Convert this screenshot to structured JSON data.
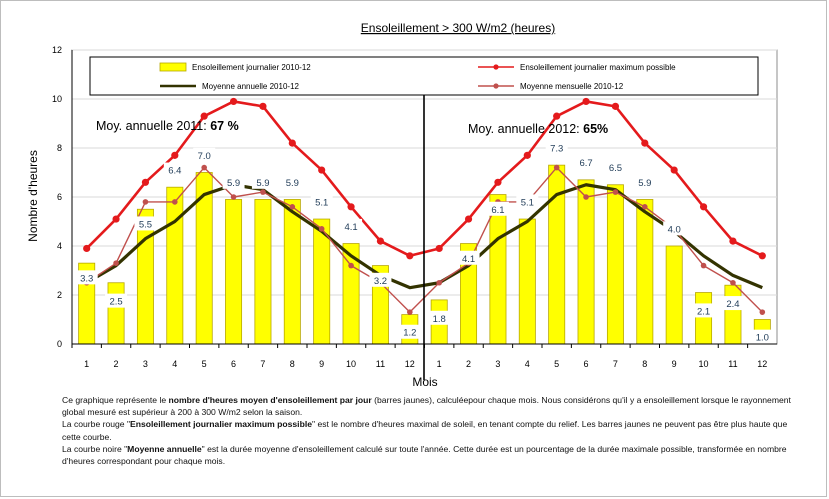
{
  "chart_data": {
    "type": "bar",
    "title": "Ensoleillement  > 300 W/m2 (heures)",
    "ylabel": "Nombre d'heures",
    "xlabel": "Mois",
    "ylim": [
      0,
      12
    ],
    "yticks": [
      "0",
      "2",
      "4",
      "6",
      "8",
      "10",
      "12"
    ],
    "grid": true,
    "legend_position": "top",
    "years": [
      "2011",
      "2012"
    ],
    "categories": [
      "1",
      "2",
      "3",
      "4",
      "5",
      "6",
      "7",
      "8",
      "9",
      "10",
      "11",
      "12",
      "1",
      "2",
      "3",
      "4",
      "5",
      "6",
      "7",
      "8",
      "9",
      "10",
      "11",
      "12"
    ],
    "bar_labels": [
      "3.3",
      "2.5",
      "5.5",
      "6.4",
      "7.0",
      "5.9",
      "5.9",
      "5.9",
      "5.1",
      "4.1",
      "3.2",
      "1.2",
      "1.8",
      "4.1",
      "6.1",
      "5.1",
      "7.3",
      "6.7",
      "6.5",
      "5.9",
      "4.0",
      "2.1",
      "2.4",
      "1.0"
    ],
    "series": [
      {
        "name": "Ensoleillement journalier 2010-12",
        "kind": "bar",
        "color": "#ffff00",
        "values": [
          3.3,
          2.5,
          5.5,
          6.4,
          7.0,
          5.9,
          5.9,
          5.9,
          5.1,
          4.1,
          3.2,
          1.2,
          1.8,
          4.1,
          6.1,
          5.1,
          7.3,
          6.7,
          6.5,
          5.9,
          4.0,
          2.1,
          2.4,
          1.0
        ]
      },
      {
        "name": "Ensoleillement journalier maximum possible",
        "kind": "line",
        "color": "#e41a1c",
        "values": [
          3.9,
          5.1,
          6.6,
          7.7,
          9.3,
          9.9,
          9.7,
          8.2,
          7.1,
          5.6,
          4.2,
          3.6,
          3.9,
          5.1,
          6.6,
          7.7,
          9.3,
          9.9,
          9.7,
          8.2,
          7.1,
          5.6,
          4.2,
          3.6
        ]
      },
      {
        "name": "Moyenne annuelle  2010-12",
        "kind": "line",
        "color": "#333300",
        "values": [
          2.5,
          3.2,
          4.3,
          5.0,
          6.1,
          6.5,
          6.3,
          5.4,
          4.6,
          3.6,
          2.8,
          2.3,
          2.5,
          3.2,
          4.3,
          5.0,
          6.1,
          6.5,
          6.3,
          5.4,
          4.6,
          3.6,
          2.8,
          2.3
        ]
      },
      {
        "name": "Moyenne mensuelle  2010-12",
        "kind": "line",
        "color": "#c0504d",
        "values": [
          2.5,
          3.3,
          5.8,
          5.8,
          7.2,
          6.0,
          6.2,
          5.6,
          4.7,
          3.2,
          2.5,
          1.3,
          2.5,
          3.3,
          5.8,
          5.8,
          7.2,
          6.0,
          6.2,
          5.6,
          4.7,
          3.2,
          2.5,
          1.3
        ]
      }
    ],
    "annotations": [
      {
        "label": "Moy. annuelle 2011: ",
        "value": "67 %"
      },
      {
        "label": "Moy. annuelle 2012: ",
        "value": "65%"
      }
    ]
  },
  "note": {
    "p1_a": "Ce graphique représente le ",
    "p1_b": "nombre d'heures moyen d'ensoleillement par jour",
    "p1_c": " (barres jaunes), calculéepour chaque mois. Nous considérons qu'il y a ensoleillement lorsque le rayonnement global mesuré est supérieur à 200 à 300 W/m2 selon la saison.",
    "p2_a": "La courbe rouge \"",
    "p2_b": "Ensoleillement journalier  maximum possible",
    "p2_c": "\" est le  nombre d'heures maximal de soleil, en tenant compte du relief. Les barres jaunes ne peuvent pas être plus haute que cette courbe.",
    "p3_a": "La courbe noire \"",
    "p3_b": "Moyenne annuelle",
    "p3_c": "\" est la durée moyenne d'ensoleillement calculé sur toute l'année. Cette durée est un pourcentage de la durée maximale possible, transformée en nombre d'heures correspondant pour chaque mois."
  }
}
